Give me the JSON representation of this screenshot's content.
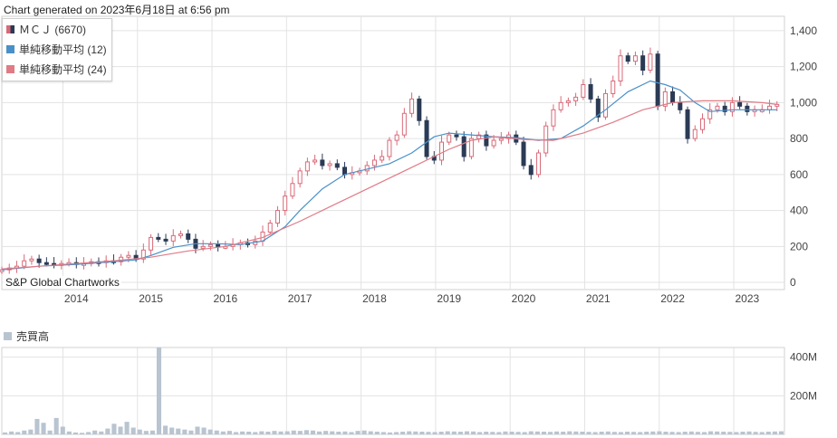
{
  "header": {
    "text": "Chart generated on 2023年6月18日 at 6:56 pm"
  },
  "legend": [
    {
      "label": "ＭＣＪ (6670)",
      "color": "#c0525e",
      "icon": "candlestick-swatch-icon"
    },
    {
      "label": "単純移動平均 (12)",
      "color": "#4a90c8",
      "icon": "blue-square-icon"
    },
    {
      "label": "単純移動平均 (24)",
      "color": "#e07b86",
      "icon": "pink-square-icon"
    }
  ],
  "credit": "S&P Global Chartworks",
  "volume_legend": {
    "label": "売買高",
    "color": "#b8c4d0"
  },
  "colors": {
    "up": "#d86a78",
    "down": "#2b3a55",
    "ma12": "#4a90c8",
    "ma24": "#e07b86",
    "volume": "#b8c4d0",
    "grid": "#e3e3e3"
  },
  "chart_data": [
    {
      "type": "candlestick",
      "x_unit": "year",
      "x_ticks": [
        "2014",
        "2015",
        "2016",
        "2017",
        "2018",
        "2019",
        "2020",
        "2021",
        "2022",
        "2023"
      ],
      "x_range": [
        2013.0,
        2023.5
      ],
      "y_ticks": [
        "0",
        "200",
        "400",
        "600",
        "800",
        "1,000",
        "1,200",
        "1,400"
      ],
      "y_range": [
        -40,
        1480
      ],
      "grid": true,
      "series": [
        {
          "name": "ＭＣＪ (6670)",
          "type": "close",
          "points": [
            [
              2013.0,
              70
            ],
            [
              2013.1,
              80
            ],
            [
              2013.2,
              90
            ],
            [
              2013.3,
              120
            ],
            [
              2013.4,
              130
            ],
            [
              2013.5,
              110
            ],
            [
              2013.6,
              105
            ],
            [
              2013.7,
              100
            ],
            [
              2013.8,
              105
            ],
            [
              2013.9,
              110
            ],
            [
              2014.0,
              100
            ],
            [
              2014.1,
              105
            ],
            [
              2014.2,
              115
            ],
            [
              2014.3,
              110
            ],
            [
              2014.4,
              120
            ],
            [
              2014.5,
              115
            ],
            [
              2014.6,
              140
            ],
            [
              2014.7,
              150
            ],
            [
              2014.8,
              130
            ],
            [
              2014.9,
              180
            ],
            [
              2015.0,
              250
            ],
            [
              2015.1,
              240
            ],
            [
              2015.2,
              230
            ],
            [
              2015.3,
              260
            ],
            [
              2015.4,
              270
            ],
            [
              2015.5,
              240
            ],
            [
              2015.6,
              190
            ],
            [
              2015.7,
              200
            ],
            [
              2015.8,
              210
            ],
            [
              2015.9,
              200
            ],
            [
              2016.0,
              200
            ],
            [
              2016.1,
              210
            ],
            [
              2016.2,
              220
            ],
            [
              2016.3,
              210
            ],
            [
              2016.4,
              230
            ],
            [
              2016.5,
              280
            ],
            [
              2016.6,
              330
            ],
            [
              2016.7,
              400
            ],
            [
              2016.8,
              480
            ],
            [
              2016.9,
              550
            ],
            [
              2017.0,
              620
            ],
            [
              2017.1,
              670
            ],
            [
              2017.2,
              680
            ],
            [
              2017.3,
              650
            ],
            [
              2017.4,
              660
            ],
            [
              2017.5,
              640
            ],
            [
              2017.6,
              600
            ],
            [
              2017.7,
              610
            ],
            [
              2017.8,
              620
            ],
            [
              2017.9,
              650
            ],
            [
              2018.0,
              680
            ],
            [
              2018.1,
              700
            ],
            [
              2018.2,
              790
            ],
            [
              2018.3,
              820
            ],
            [
              2018.4,
              940
            ],
            [
              2018.5,
              1020
            ],
            [
              2018.6,
              900
            ],
            [
              2018.7,
              700
            ],
            [
              2018.8,
              680
            ],
            [
              2018.9,
              780
            ],
            [
              2019.0,
              820
            ],
            [
              2019.1,
              810
            ],
            [
              2019.2,
              700
            ],
            [
              2019.3,
              800
            ],
            [
              2019.4,
              820
            ],
            [
              2019.5,
              760
            ],
            [
              2019.6,
              790
            ],
            [
              2019.7,
              800
            ],
            [
              2019.8,
              820
            ],
            [
              2019.9,
              780
            ],
            [
              2020.0,
              650
            ],
            [
              2020.1,
              600
            ],
            [
              2020.2,
              720
            ],
            [
              2020.3,
              870
            ],
            [
              2020.4,
              960
            ],
            [
              2020.5,
              1000
            ],
            [
              2020.6,
              1010
            ],
            [
              2020.7,
              1030
            ],
            [
              2020.8,
              1100
            ],
            [
              2020.9,
              1020
            ],
            [
              2021.0,
              920
            ],
            [
              2021.1,
              1050
            ],
            [
              2021.2,
              1120
            ],
            [
              2021.3,
              1260
            ],
            [
              2021.4,
              1230
            ],
            [
              2021.5,
              1260
            ],
            [
              2021.6,
              1180
            ],
            [
              2021.7,
              1270
            ],
            [
              2021.8,
              980
            ],
            [
              2021.9,
              1060
            ],
            [
              2022.0,
              1000
            ],
            [
              2022.1,
              960
            ],
            [
              2022.2,
              800
            ],
            [
              2022.3,
              850
            ],
            [
              2022.4,
              910
            ],
            [
              2022.5,
              960
            ],
            [
              2022.6,
              980
            ],
            [
              2022.7,
              950
            ],
            [
              2022.8,
              1000
            ],
            [
              2022.9,
              980
            ],
            [
              2023.0,
              950
            ],
            [
              2023.1,
              960
            ],
            [
              2023.2,
              960
            ],
            [
              2023.3,
              980
            ],
            [
              2023.4,
              990
            ]
          ]
        },
        {
          "name": "単純移動平均 (12)",
          "type": "line",
          "color": "#4a90c8",
          "points": [
            [
              2013.0,
              70
            ],
            [
              2013.5,
              90
            ],
            [
              2014.0,
              100
            ],
            [
              2014.5,
              115
            ],
            [
              2014.8,
              125
            ],
            [
              2015.0,
              150
            ],
            [
              2015.3,
              195
            ],
            [
              2015.6,
              215
            ],
            [
              2015.9,
              215
            ],
            [
              2016.2,
              210
            ],
            [
              2016.5,
              230
            ],
            [
              2016.8,
              310
            ],
            [
              2017.0,
              400
            ],
            [
              2017.3,
              520
            ],
            [
              2017.6,
              600
            ],
            [
              2017.9,
              630
            ],
            [
              2018.2,
              660
            ],
            [
              2018.5,
              720
            ],
            [
              2018.8,
              810
            ],
            [
              2019.0,
              830
            ],
            [
              2019.3,
              820
            ],
            [
              2019.6,
              810
            ],
            [
              2019.9,
              805
            ],
            [
              2020.2,
              790
            ],
            [
              2020.5,
              800
            ],
            [
              2020.8,
              870
            ],
            [
              2021.1,
              960
            ],
            [
              2021.4,
              1060
            ],
            [
              2021.7,
              1120
            ],
            [
              2021.9,
              1100
            ],
            [
              2022.1,
              1070
            ],
            [
              2022.3,
              1000
            ],
            [
              2022.5,
              950
            ],
            [
              2022.8,
              960
            ],
            [
              2023.0,
              960
            ],
            [
              2023.4,
              960
            ]
          ]
        },
        {
          "name": "単純移動平均 (24)",
          "type": "line",
          "color": "#e07b86",
          "points": [
            [
              2013.0,
              75
            ],
            [
              2013.5,
              90
            ],
            [
              2014.0,
              105
            ],
            [
              2014.5,
              120
            ],
            [
              2015.0,
              140
            ],
            [
              2015.5,
              175
            ],
            [
              2016.0,
              200
            ],
            [
              2016.5,
              250
            ],
            [
              2017.0,
              340
            ],
            [
              2017.5,
              440
            ],
            [
              2018.0,
              540
            ],
            [
              2018.5,
              640
            ],
            [
              2019.0,
              740
            ],
            [
              2019.3,
              790
            ],
            [
              2019.6,
              810
            ],
            [
              2020.0,
              795
            ],
            [
              2020.4,
              790
            ],
            [
              2020.8,
              830
            ],
            [
              2021.2,
              890
            ],
            [
              2021.6,
              960
            ],
            [
              2022.0,
              1000
            ],
            [
              2022.4,
              1010
            ],
            [
              2022.8,
              1010
            ],
            [
              2023.2,
              1000
            ],
            [
              2023.4,
              990
            ]
          ]
        }
      ]
    },
    {
      "type": "bar",
      "name": "売買高",
      "y_ticks": [
        "200M",
        "400M"
      ],
      "y_range": [
        0,
        450
      ],
      "grid": true,
      "bar_color": "#b8c4d0",
      "values": [
        10,
        15,
        12,
        20,
        25,
        80,
        60,
        20,
        85,
        40,
        15,
        10,
        8,
        12,
        20,
        15,
        30,
        55,
        40,
        65,
        35,
        25,
        18,
        20,
        450,
        45,
        35,
        30,
        25,
        20,
        40,
        35,
        25,
        20,
        15,
        18,
        12,
        15,
        14,
        12,
        16,
        14,
        18,
        15,
        16,
        20,
        18,
        22,
        20,
        15,
        18,
        16,
        14,
        15,
        12,
        18,
        20,
        16,
        14,
        12,
        10,
        12,
        14,
        16,
        15,
        14,
        13,
        12,
        14,
        16,
        15,
        14,
        16,
        15,
        12,
        14,
        13,
        12,
        15,
        14,
        13,
        12,
        16,
        15,
        14,
        13,
        15,
        14,
        16,
        15,
        14,
        13,
        12,
        14,
        15,
        13,
        12,
        14,
        13,
        12,
        14,
        15,
        16,
        14,
        13,
        12,
        14,
        15,
        13,
        12,
        16,
        15,
        14,
        13,
        12,
        14,
        15,
        13,
        12,
        14,
        15,
        16
      ]
    }
  ]
}
